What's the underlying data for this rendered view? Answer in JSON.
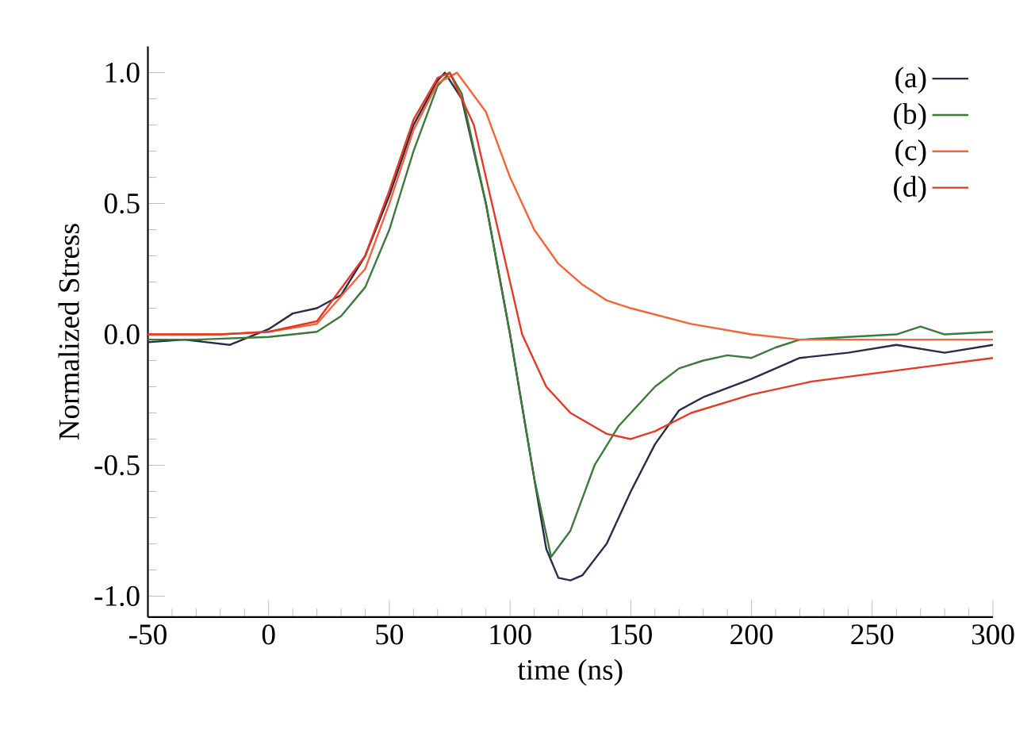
{
  "chart_data": {
    "type": "line",
    "xlabel": "time (ns)",
    "ylabel": "Normalized Stress",
    "xlim": [
      -50,
      300
    ],
    "ylim": [
      -1.08,
      1.1
    ],
    "xticks": [
      -50,
      0,
      50,
      100,
      150,
      200,
      250,
      300
    ],
    "yticks": [
      {
        "value": -1.0,
        "label": "-1.0"
      },
      -0.5,
      {
        "value": 0.0,
        "label": "0.0"
      },
      0.5,
      {
        "value": 1.0,
        "label": "1.0"
      }
    ],
    "legend": "top right",
    "grid": false,
    "marker": "none",
    "line_style": "solid",
    "series": [
      {
        "name": "(a)",
        "color": "#2a2a4a",
        "x": [
          -50,
          -35,
          -16,
          0,
          10,
          20,
          30,
          40,
          50,
          60,
          70,
          73,
          80,
          90,
          100,
          110,
          115,
          120,
          125,
          130,
          140,
          150,
          160,
          170,
          180,
          200,
          220,
          240,
          260,
          280,
          300
        ],
        "values": [
          -0.03,
          -0.02,
          -0.04,
          0.02,
          0.08,
          0.1,
          0.15,
          0.3,
          0.53,
          0.8,
          0.97,
          1.0,
          0.9,
          0.5,
          0.0,
          -0.55,
          -0.82,
          -0.93,
          -0.94,
          -0.92,
          -0.8,
          -0.6,
          -0.42,
          -0.29,
          -0.24,
          -0.17,
          -0.09,
          -0.07,
          -0.04,
          -0.07,
          -0.04
        ]
      },
      {
        "name": "(b)",
        "color": "#3d7a3a",
        "x": [
          -50,
          -30,
          0,
          20,
          30,
          40,
          50,
          60,
          70,
          75,
          80,
          90,
          100,
          110,
          117,
          125,
          135,
          145,
          150,
          160,
          170,
          180,
          190,
          200,
          210,
          220,
          240,
          260,
          270,
          280,
          300
        ],
        "values": [
          -0.02,
          -0.02,
          -0.01,
          0.01,
          0.07,
          0.18,
          0.4,
          0.7,
          0.95,
          1.0,
          0.92,
          0.5,
          0.0,
          -0.55,
          -0.85,
          -0.75,
          -0.5,
          -0.35,
          -0.3,
          -0.2,
          -0.13,
          -0.1,
          -0.08,
          -0.09,
          -0.05,
          -0.02,
          -0.01,
          0.0,
          0.03,
          0.0,
          0.01
        ]
      },
      {
        "name": "(c)",
        "color": "#f2643a",
        "x": [
          -50,
          -20,
          0,
          20,
          40,
          50,
          60,
          70,
          78,
          90,
          100,
          110,
          120,
          130,
          140,
          150,
          175,
          200,
          220,
          250,
          300
        ],
        "values": [
          0.0,
          0.0,
          0.01,
          0.04,
          0.25,
          0.5,
          0.78,
          0.96,
          1.0,
          0.85,
          0.6,
          0.4,
          0.27,
          0.19,
          0.13,
          0.1,
          0.04,
          0.0,
          -0.02,
          -0.02,
          -0.02
        ]
      },
      {
        "name": "(d)",
        "color": "#e33a26",
        "x": [
          -50,
          -20,
          0,
          20,
          40,
          50,
          60,
          70,
          75,
          85,
          95,
          105,
          115,
          125,
          140,
          150,
          160,
          175,
          200,
          225,
          250,
          275,
          300
        ],
        "values": [
          0.0,
          0.0,
          0.01,
          0.05,
          0.3,
          0.55,
          0.82,
          0.98,
          1.0,
          0.8,
          0.4,
          0.0,
          -0.2,
          -0.3,
          -0.38,
          -0.4,
          -0.37,
          -0.3,
          -0.23,
          -0.18,
          -0.15,
          -0.12,
          -0.09
        ]
      }
    ]
  }
}
